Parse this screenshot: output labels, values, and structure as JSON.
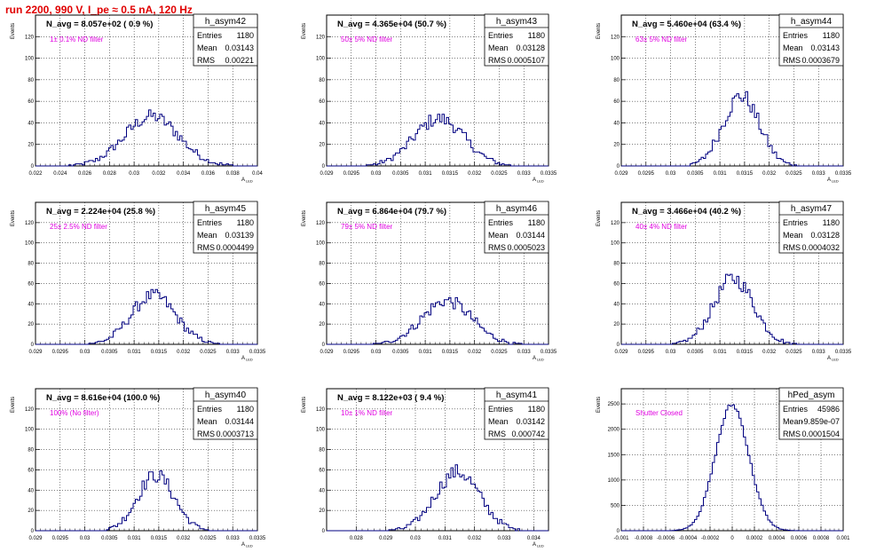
{
  "run_title": "run 2200,   990 V, I_pe ≈ 0.5 nA, 120 Hz",
  "colors": {
    "title": "#e00000",
    "annotation": "#e000e0",
    "histogram": "#000080",
    "grid": "#000000"
  },
  "chart_data": [
    {
      "type": "bar",
      "name": "h_asym42",
      "title": "N_avg = 8.057e+02 ( 0.9 %)",
      "annotation": "1± 0.1% ND filter",
      "stats": [
        [
          "Entries",
          "1180"
        ],
        [
          "Mean",
          "0.03143"
        ],
        [
          "RMS",
          "0.00221"
        ]
      ],
      "xlabel": "A_LED",
      "ylabel": "Events",
      "xlim": [
        0.022,
        0.04
      ],
      "ylim": [
        0,
        140
      ],
      "xticks": [
        "0.022",
        "0.024",
        "0.026",
        "0.028",
        "0.03",
        "0.032",
        "0.034",
        "0.036",
        "0.038",
        "0.04"
      ],
      "yticks": [
        "0",
        "20",
        "40",
        "60",
        "80",
        "100",
        "120"
      ],
      "mean": 0.03143,
      "rms": 0.00221,
      "peak": 46,
      "entries": 1180
    },
    {
      "type": "bar",
      "name": "h_asym43",
      "title": "N_avg = 4.365e+04 (50.7 %)",
      "annotation": "50± 5% ND filter",
      "stats": [
        [
          "Entries",
          "1180"
        ],
        [
          "Mean",
          "0.03128"
        ],
        [
          "RMS",
          "0.0005107"
        ]
      ],
      "xlabel": "A_LED",
      "ylabel": "Events",
      "xlim": [
        0.029,
        0.0335
      ],
      "ylim": [
        0,
        140
      ],
      "xticks": [
        "0.029",
        "0.0295",
        "0.03",
        "0.0305",
        "0.031",
        "0.0315",
        "0.032",
        "0.0325",
        "0.033",
        "0.0335"
      ],
      "yticks": [
        "0",
        "20",
        "40",
        "60",
        "80",
        "100",
        "120"
      ],
      "mean": 0.03128,
      "rms": 0.0005107,
      "peak": 44,
      "entries": 1180
    },
    {
      "type": "bar",
      "name": "h_asym44",
      "title": "N_avg = 5.460e+04 (63.4 %)",
      "annotation": "63± 5% ND filter",
      "stats": [
        [
          "Entries",
          "1180"
        ],
        [
          "Mean",
          "0.03143"
        ],
        [
          "RMS",
          "0.0003679"
        ]
      ],
      "xlabel": "A_LED",
      "ylabel": "Events",
      "xlim": [
        0.029,
        0.0335
      ],
      "ylim": [
        0,
        140
      ],
      "xticks": [
        "0.029",
        "0.0295",
        "0.03",
        "0.0305",
        "0.031",
        "0.0315",
        "0.032",
        "0.0325",
        "0.033",
        "0.0335"
      ],
      "yticks": [
        "0",
        "20",
        "40",
        "60",
        "80",
        "100",
        "120"
      ],
      "mean": 0.03143,
      "rms": 0.0003679,
      "peak": 65,
      "entries": 1180
    },
    {
      "type": "bar",
      "name": "h_asym45",
      "title": "N_avg = 2.224e+04 (25.8 %)",
      "annotation": "25± 2.5% ND filter",
      "stats": [
        [
          "Entries",
          "1180"
        ],
        [
          "Mean",
          "0.03139"
        ],
        [
          "RMS",
          "0.0004499"
        ]
      ],
      "xlabel": "A_LED",
      "ylabel": "Events",
      "xlim": [
        0.029,
        0.0335
      ],
      "ylim": [
        0,
        140
      ],
      "xticks": [
        "0.029",
        "0.0295",
        "0.03",
        "0.0305",
        "0.031",
        "0.0315",
        "0.032",
        "0.0325",
        "0.033",
        "0.0335"
      ],
      "yticks": [
        "0",
        "20",
        "40",
        "60",
        "80",
        "100",
        "120"
      ],
      "mean": 0.03139,
      "rms": 0.0004499,
      "peak": 48,
      "entries": 1180
    },
    {
      "type": "bar",
      "name": "h_asym46",
      "title": "N_avg = 6.864e+04 (79.7 %)",
      "annotation": "79± 5% ND filter",
      "stats": [
        [
          "Entries",
          "1180"
        ],
        [
          "Mean",
          "0.03144"
        ],
        [
          "RMS",
          "0.0005023"
        ]
      ],
      "xlabel": "A_LED",
      "ylabel": "Events",
      "xlim": [
        0.029,
        0.0335
      ],
      "ylim": [
        0,
        140
      ],
      "xticks": [
        "0.029",
        "0.0295",
        "0.03",
        "0.0305",
        "0.031",
        "0.0315",
        "0.032",
        "0.0325",
        "0.033",
        "0.0335"
      ],
      "yticks": [
        "0",
        "20",
        "40",
        "60",
        "80",
        "100",
        "120"
      ],
      "mean": 0.03144,
      "rms": 0.0005023,
      "peak": 43,
      "entries": 1180
    },
    {
      "type": "bar",
      "name": "h_asym47",
      "title": "N_avg = 3.466e+04 (40.2 %)",
      "annotation": "40± 4% ND filter",
      "stats": [
        [
          "Entries",
          "1180"
        ],
        [
          "Mean",
          "0.03128"
        ],
        [
          "RMS",
          "0.0004032"
        ]
      ],
      "xlabel": "A_LED",
      "ylabel": "Events",
      "xlim": [
        0.029,
        0.0335
      ],
      "ylim": [
        0,
        140
      ],
      "xticks": [
        "0.029",
        "0.0295",
        "0.03",
        "0.0305",
        "0.031",
        "0.0315",
        "0.032",
        "0.0325",
        "0.033",
        "0.0335"
      ],
      "yticks": [
        "0",
        "20",
        "40",
        "60",
        "80",
        "100",
        "120"
      ],
      "mean": 0.03128,
      "rms": 0.0004032,
      "peak": 65,
      "entries": 1180
    },
    {
      "type": "bar",
      "name": "h_asym40",
      "title": "N_avg = 8.616e+04 (100.0 %)",
      "annotation": "100% (No filter)",
      "stats": [
        [
          "Entries",
          "1180"
        ],
        [
          "Mean",
          "0.03144"
        ],
        [
          "RMS",
          "0.0003713"
        ]
      ],
      "xlabel": "A_LED",
      "ylabel": "Events",
      "xlim": [
        0.029,
        0.0335
      ],
      "ylim": [
        0,
        140
      ],
      "xticks": [
        "0.029",
        "0.0295",
        "0.03",
        "0.0305",
        "0.031",
        "0.0315",
        "0.032",
        "0.0325",
        "0.033",
        "0.0335"
      ],
      "yticks": [
        "0",
        "20",
        "40",
        "60",
        "80",
        "100",
        "120"
      ],
      "mean": 0.03144,
      "rms": 0.0003713,
      "peak": 55,
      "entries": 1180
    },
    {
      "type": "bar",
      "name": "h_asym41",
      "title": "N_avg = 8.122e+03 ( 9.4 %)",
      "annotation": "10± 1% ND filter",
      "stats": [
        [
          "Entries",
          "1180"
        ],
        [
          "Mean",
          "0.03142"
        ],
        [
          "RMS",
          "0.000742"
        ]
      ],
      "xlabel": "A_LED",
      "ylabel": "Events",
      "xlim": [
        0.027,
        0.0345
      ],
      "ylim": [
        0,
        140
      ],
      "xticks": [
        "0.028",
        "0.029",
        "0.03",
        "0.031",
        "0.032",
        "0.033",
        "0.034"
      ],
      "yticks": [
        "0",
        "20",
        "40",
        "60",
        "80",
        "100",
        "120"
      ],
      "mean": 0.03142,
      "rms": 0.000742,
      "peak": 58,
      "entries": 1180
    },
    {
      "type": "bar",
      "name": "hPed_asym",
      "title": "",
      "annotation": "Shutter Closed",
      "stats": [
        [
          "Entries",
          "45986"
        ],
        [
          "Mean",
          "-9.859e-07"
        ],
        [
          "RMS",
          "0.0001504"
        ]
      ],
      "xlabel": "",
      "ylabel": "Events",
      "xlim": [
        -0.001,
        0.001
      ],
      "ylim": [
        0,
        2800
      ],
      "xticks": [
        "-0.001",
        "-0.0008",
        "-0.0006",
        "-0.0004",
        "-0.0002",
        "0",
        "0.0002",
        "0.0004",
        "0.0006",
        "0.0008",
        "0.001"
      ],
      "yticks": [
        "0",
        "500",
        "1000",
        "1500",
        "2000",
        "2500"
      ],
      "mean": -9.86e-07,
      "rms": 0.0001504,
      "peak": 2480,
      "entries": 45986
    }
  ]
}
